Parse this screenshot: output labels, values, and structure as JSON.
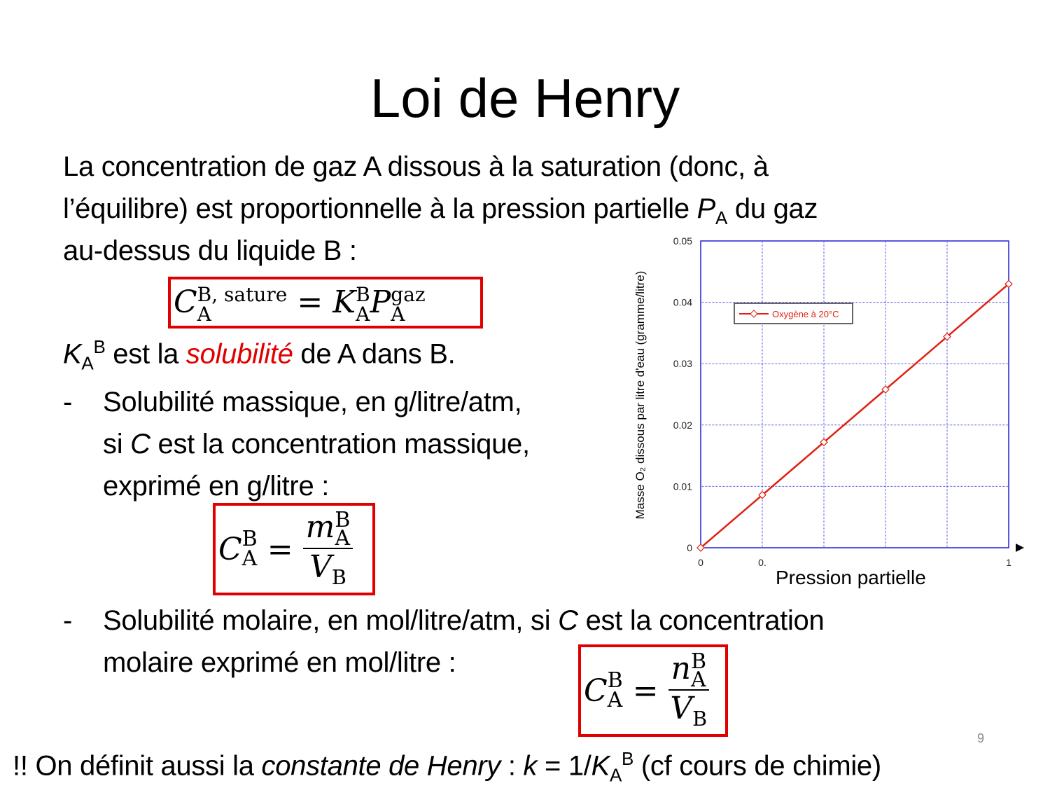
{
  "title": "Loi de Henry",
  "intro": {
    "line1": "La concentration de gaz A dissous à la saturation (donc, à",
    "line2_a": "l’équilibre) est proportionnelle à la pression partielle ",
    "line2_P": "P",
    "line2_sub": "A",
    "line2_b": " du gaz",
    "line3": "au-dessus du liquide B :"
  },
  "formula1": {
    "C": "C",
    "sup": "B, sature",
    "sub": "A",
    "eq": " = ",
    "K": "K",
    "Ksup": "B",
    "Ksub": "A",
    "P": "P",
    "Psup": "gaz",
    "Psub": "A"
  },
  "solubility": {
    "K": "K",
    "sub": "A",
    "sup": "B",
    "a": " est la ",
    "word": "solubilité",
    "b": " de A dans B."
  },
  "bullet1": {
    "dash": "-",
    "line1": "Solubilité massique, en g/litre/atm,",
    "line2_a": "si ",
    "line2_C": "C",
    "line2_b": " est la concentration massique,",
    "line3": "exprimé en g/litre :"
  },
  "formula2": {
    "C": "C",
    "sup": "B",
    "sub": "A",
    "eq": "=",
    "m": "m",
    "msup": "B",
    "msub": "A",
    "V": "V",
    "Vsub": "B"
  },
  "bullet2": {
    "dash": "-",
    "line1_a": "Solubilité molaire, en mol/litre/atm, si ",
    "line1_C": "C",
    "line1_b": " est la concentration",
    "line2": "molaire exprimé en mol/litre :"
  },
  "formula3": {
    "C": "C",
    "sup": "B",
    "sub": "A",
    "eq": "=",
    "n": "n",
    "nsup": "B",
    "nsub": "A",
    "V": "V",
    "Vsub": "B"
  },
  "footer": {
    "a": "!! On définit aussi la ",
    "b": "constante de Henry",
    "c": " : ",
    "k": "k",
    "d": " = 1/",
    "K": "K",
    "sub": "A",
    "sup": "B",
    "e": " (cf cours de chimie)"
  },
  "page_number": "9",
  "chart_data": {
    "type": "line",
    "xlabel": "Pression partielle",
    "ylabel": "Masse O₂ dissous par litre d'eau (gramme/litre)",
    "x_tick_labels": [
      "0",
      "0.",
      "1"
    ],
    "y_tick_labels": [
      "0",
      "0.01",
      "0.02",
      "0.03",
      "0.04",
      "0.05"
    ],
    "xlim": [
      0,
      1
    ],
    "ylim": [
      0,
      0.05
    ],
    "grid": true,
    "legend_placement": "top-left",
    "series": [
      {
        "name": "Oxygène à 20°C",
        "color": "#e02010",
        "x": [
          0,
          0.2,
          0.4,
          0.6,
          0.8,
          1.0
        ],
        "y": [
          0,
          0.0086,
          0.0172,
          0.0258,
          0.0344,
          0.043
        ]
      }
    ],
    "colors": {
      "axes": "#2020d0",
      "grid": "#4040e0"
    }
  }
}
